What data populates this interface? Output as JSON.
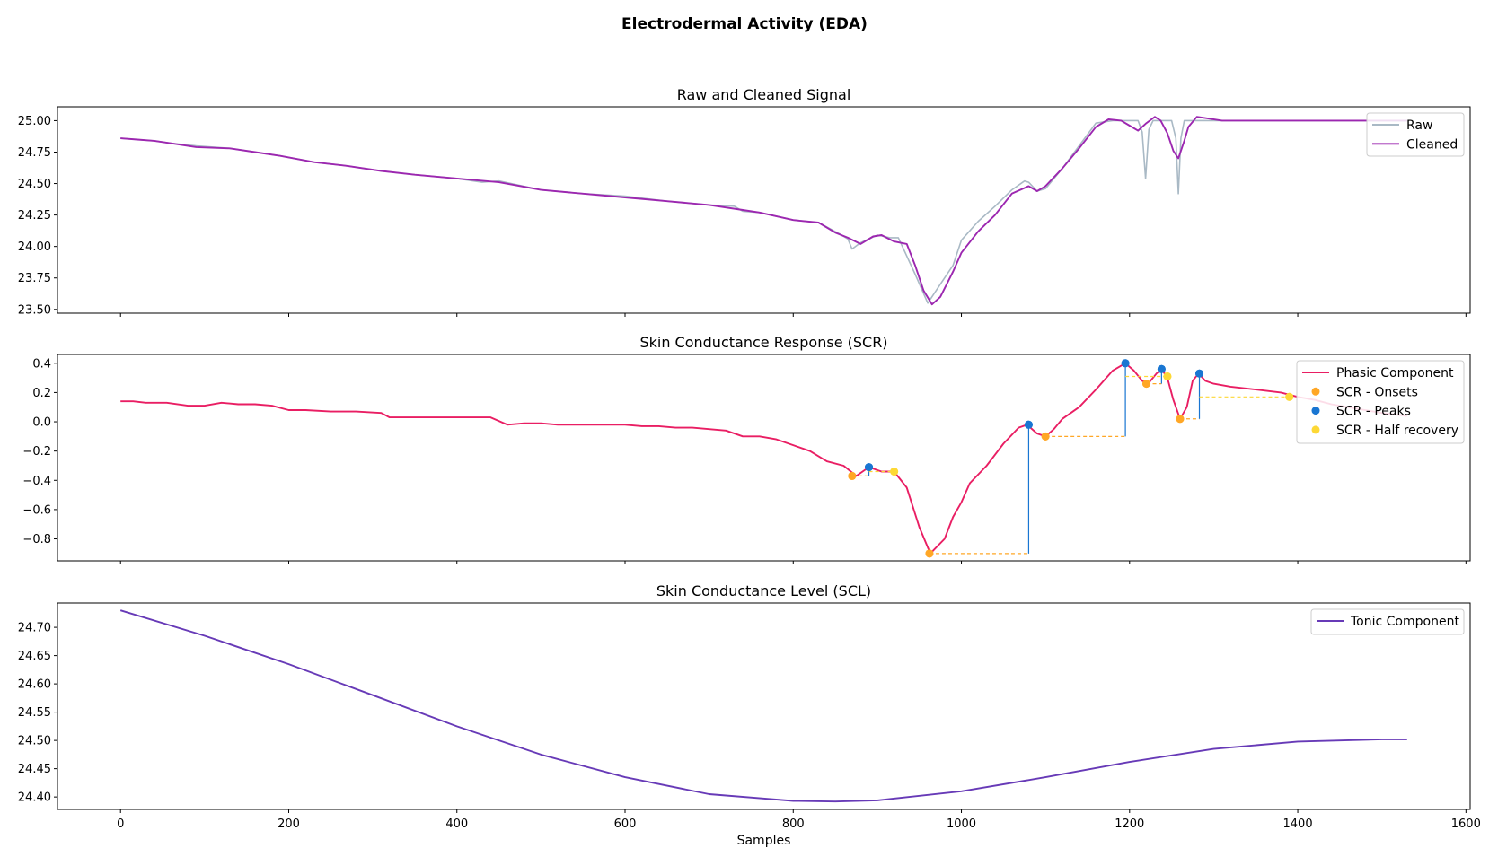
{
  "suptitle": "Electrodermal Activity (EDA)",
  "colors": {
    "raw": "#a9b9c5",
    "cleaned": "#9c27b0",
    "phasic": "#e91e63",
    "onsets": "#ffa726",
    "peaks": "#1976d2",
    "half_recovery": "#fdd835",
    "tonic": "#673ab7"
  },
  "chart_data": [
    {
      "type": "line",
      "title": "Raw and Cleaned Signal",
      "xlabel": "",
      "ylabel": "",
      "xlim": [
        -75,
        1605
      ],
      "ylim": [
        23.47,
        25.11
      ],
      "xticks": [
        0,
        200,
        400,
        600,
        800,
        1000,
        1200,
        1400,
        1600
      ],
      "yticks": [
        23.5,
        23.75,
        24.0,
        24.25,
        24.5,
        24.75,
        25.0
      ],
      "ytick_labels": [
        "23.50",
        "23.75",
        "24.00",
        "24.25",
        "24.50",
        "24.75",
        "25.00"
      ],
      "show_xtick_labels": false,
      "legend": "top-right",
      "series": [
        {
          "name": "Raw",
          "color_key": "raw",
          "x": [
            0,
            20,
            40,
            60,
            90,
            130,
            160,
            190,
            230,
            270,
            310,
            350,
            400,
            430,
            450,
            500,
            550,
            600,
            650,
            700,
            730,
            740,
            760,
            800,
            830,
            855,
            865,
            870,
            880,
            900,
            915,
            925,
            945,
            960,
            975,
            990,
            1000,
            1020,
            1040,
            1060,
            1075,
            1080,
            1090,
            1100,
            1120,
            1140,
            1160,
            1180,
            1190,
            1210,
            1215,
            1219,
            1223,
            1228,
            1240,
            1250,
            1255,
            1258,
            1261,
            1265,
            1275,
            1300,
            1530
          ],
          "y": [
            24.86,
            24.85,
            24.84,
            24.82,
            24.8,
            24.78,
            24.75,
            24.72,
            24.67,
            24.64,
            24.6,
            24.57,
            24.54,
            24.51,
            24.52,
            24.45,
            24.42,
            24.4,
            24.36,
            24.33,
            24.32,
            24.28,
            24.27,
            24.21,
            24.19,
            24.1,
            24.06,
            23.98,
            24.03,
            24.09,
            24.07,
            24.07,
            23.78,
            23.55,
            23.7,
            23.85,
            24.05,
            24.2,
            24.32,
            24.45,
            24.52,
            24.51,
            24.44,
            24.46,
            24.62,
            24.8,
            24.98,
            25.0,
            25.0,
            25.0,
            24.91,
            24.54,
            24.93,
            25.0,
            25.0,
            25.0,
            24.86,
            24.42,
            24.86,
            25.0,
            25.0,
            25.0,
            25.0
          ]
        },
        {
          "name": "Cleaned",
          "color_key": "cleaned",
          "x": [
            0,
            20,
            40,
            60,
            90,
            130,
            160,
            190,
            230,
            270,
            310,
            350,
            400,
            450,
            500,
            550,
            600,
            650,
            700,
            740,
            760,
            800,
            830,
            850,
            865,
            880,
            895,
            905,
            920,
            935,
            945,
            955,
            965,
            975,
            990,
            1000,
            1020,
            1040,
            1060,
            1080,
            1090,
            1100,
            1120,
            1140,
            1160,
            1175,
            1190,
            1200,
            1210,
            1220,
            1230,
            1237,
            1245,
            1252,
            1258,
            1265,
            1270,
            1280,
            1290,
            1310,
            1530
          ],
          "y": [
            24.86,
            24.85,
            24.84,
            24.82,
            24.79,
            24.78,
            24.75,
            24.72,
            24.67,
            24.64,
            24.6,
            24.57,
            24.54,
            24.51,
            24.45,
            24.42,
            24.39,
            24.36,
            24.33,
            24.29,
            24.27,
            24.21,
            24.19,
            24.11,
            24.07,
            24.02,
            24.08,
            24.09,
            24.04,
            24.02,
            23.85,
            23.65,
            23.54,
            23.6,
            23.8,
            23.95,
            24.12,
            24.25,
            24.42,
            24.48,
            24.44,
            24.48,
            24.62,
            24.78,
            24.95,
            25.01,
            25.0,
            24.96,
            24.92,
            24.98,
            25.03,
            25.0,
            24.9,
            24.76,
            24.7,
            24.84,
            24.95,
            25.03,
            25.02,
            25.0,
            25.0
          ]
        }
      ]
    },
    {
      "type": "line",
      "title": "Skin Conductance Response (SCR)",
      "xlabel": "",
      "ylabel": "",
      "xlim": [
        -75,
        1605
      ],
      "ylim": [
        -0.95,
        0.46
      ],
      "xticks": [
        0,
        200,
        400,
        600,
        800,
        1000,
        1200,
        1400,
        1600
      ],
      "yticks": [
        -0.8,
        -0.6,
        -0.4,
        -0.2,
        0.0,
        0.2,
        0.4
      ],
      "ytick_labels": [
        "−0.8",
        "−0.6",
        "−0.4",
        "−0.2",
        "0.0",
        "0.2",
        "0.4"
      ],
      "show_xtick_labels": false,
      "legend": "top-right",
      "series": [
        {
          "name": "Phasic Component",
          "color_key": "phasic",
          "x": [
            0,
            15,
            30,
            55,
            80,
            100,
            120,
            140,
            160,
            180,
            200,
            220,
            250,
            280,
            310,
            320,
            340,
            360,
            380,
            400,
            420,
            440,
            460,
            480,
            500,
            520,
            540,
            560,
            580,
            600,
            620,
            640,
            660,
            680,
            700,
            720,
            740,
            760,
            780,
            800,
            820,
            840,
            860,
            875,
            890,
            905,
            920,
            935,
            950,
            963,
            980,
            990,
            1000,
            1010,
            1030,
            1050,
            1068,
            1078,
            1090,
            1100,
            1110,
            1120,
            1140,
            1160,
            1180,
            1195,
            1205,
            1215,
            1222,
            1232,
            1238,
            1245,
            1252,
            1260,
            1268,
            1275,
            1282,
            1290,
            1300,
            1320,
            1350,
            1380,
            1400,
            1420,
            1440,
            1460,
            1480,
            1500,
            1530
          ],
          "y": [
            0.14,
            0.14,
            0.13,
            0.13,
            0.11,
            0.11,
            0.13,
            0.12,
            0.12,
            0.11,
            0.08,
            0.08,
            0.07,
            0.07,
            0.06,
            0.03,
            0.03,
            0.03,
            0.03,
            0.03,
            0.03,
            0.03,
            -0.02,
            -0.01,
            -0.01,
            -0.02,
            -0.02,
            -0.02,
            -0.02,
            -0.02,
            -0.03,
            -0.03,
            -0.04,
            -0.04,
            -0.05,
            -0.06,
            -0.1,
            -0.1,
            -0.12,
            -0.16,
            -0.2,
            -0.27,
            -0.3,
            -0.37,
            -0.31,
            -0.34,
            -0.34,
            -0.45,
            -0.72,
            -0.9,
            -0.8,
            -0.65,
            -0.55,
            -0.42,
            -0.3,
            -0.15,
            -0.04,
            -0.02,
            -0.08,
            -0.1,
            -0.05,
            0.02,
            0.1,
            0.22,
            0.35,
            0.4,
            0.35,
            0.28,
            0.26,
            0.33,
            0.36,
            0.3,
            0.15,
            0.02,
            0.1,
            0.28,
            0.33,
            0.28,
            0.26,
            0.24,
            0.22,
            0.2,
            0.17,
            0.15,
            0.12,
            0.1,
            0.08,
            0.06,
            0.04
          ]
        },
        {
          "name": "SCR - Onsets",
          "color_key": "onsets",
          "marker": "dot",
          "x": [
            870,
            962,
            1100,
            1220,
            1260
          ],
          "y": [
            -0.37,
            -0.9,
            -0.1,
            0.26,
            0.02
          ]
        },
        {
          "name": "SCR - Peaks",
          "color_key": "peaks",
          "marker": "dot",
          "x": [
            890,
            1080,
            1195,
            1238,
            1283
          ],
          "y": [
            -0.31,
            -0.02,
            0.4,
            0.36,
            0.33
          ]
        },
        {
          "name": "SCR - Half recovery",
          "color_key": "half_recovery",
          "marker": "dot",
          "x": [
            920,
            1245,
            1390
          ],
          "y": [
            -0.34,
            0.31,
            0.17
          ]
        }
      ]
    },
    {
      "type": "line",
      "title": "Skin Conductance Level (SCL)",
      "xlabel": "Samples",
      "ylabel": "",
      "xlim": [
        -75,
        1605
      ],
      "ylim": [
        24.378,
        24.743
      ],
      "xticks": [
        0,
        200,
        400,
        600,
        800,
        1000,
        1200,
        1400,
        1600
      ],
      "yticks": [
        24.4,
        24.45,
        24.5,
        24.55,
        24.6,
        24.65,
        24.7
      ],
      "ytick_labels": [
        "24.40",
        "24.45",
        "24.50",
        "24.55",
        "24.60",
        "24.65",
        "24.70"
      ],
      "xtick_labels": [
        "0",
        "200",
        "400",
        "600",
        "800",
        "1000",
        "1200",
        "1400",
        "1600"
      ],
      "show_xtick_labels": true,
      "legend": "top-right",
      "series": [
        {
          "name": "Tonic Component",
          "color_key": "tonic",
          "x": [
            0,
            100,
            200,
            300,
            400,
            500,
            600,
            700,
            800,
            850,
            900,
            1000,
            1100,
            1200,
            1300,
            1400,
            1500,
            1530
          ],
          "y": [
            24.73,
            24.685,
            24.635,
            24.58,
            24.525,
            24.475,
            24.435,
            24.405,
            24.393,
            24.392,
            24.394,
            24.41,
            24.435,
            24.462,
            24.485,
            24.498,
            24.502,
            24.502
          ]
        }
      ]
    }
  ]
}
